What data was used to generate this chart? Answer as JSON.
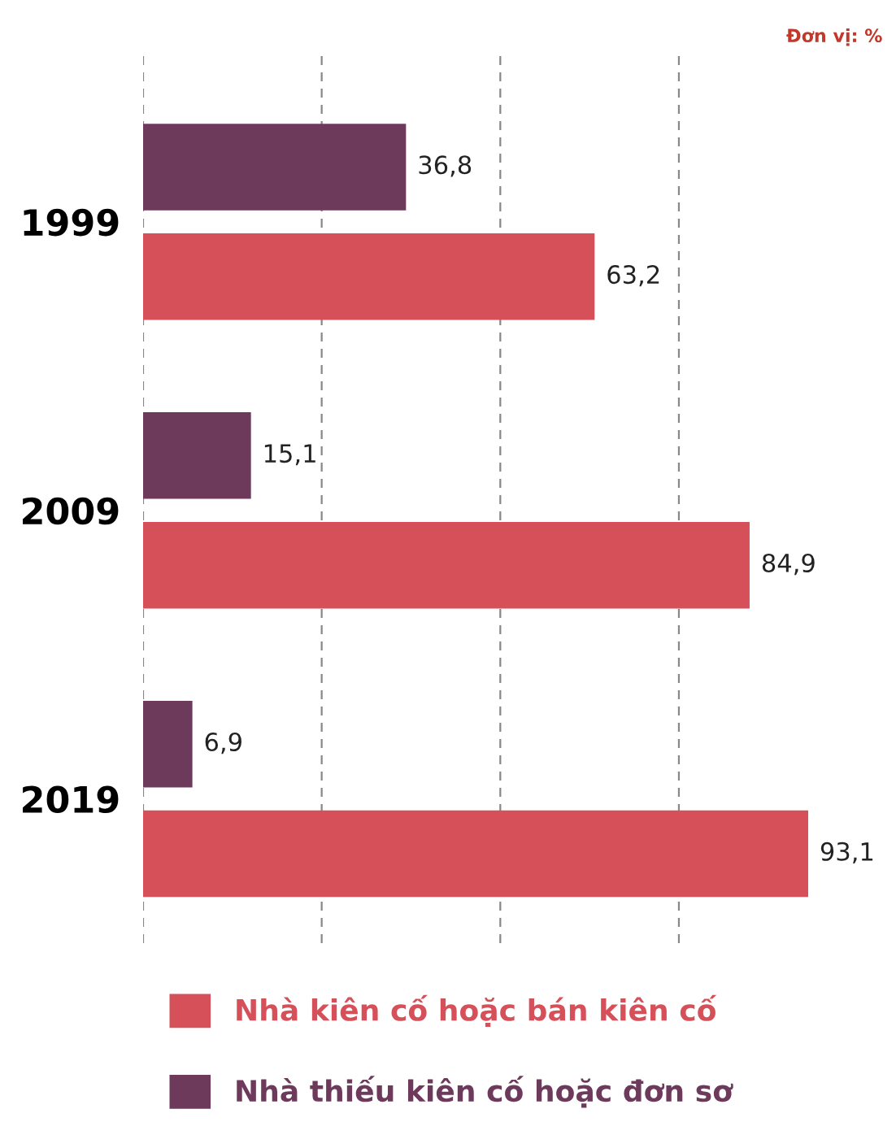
{
  "chart_data": {
    "type": "bar",
    "orientation": "horizontal",
    "annotations": [
      "Đơn vị: %"
    ],
    "categories": [
      "1999",
      "2009",
      "2019"
    ],
    "series": [
      {
        "name": "Nhà kiên cố hoặc bán kiên cố",
        "color": "#d6505a",
        "values": [
          63.2,
          84.9,
          93.1
        ],
        "value_labels": [
          "63,2",
          "84,9",
          "93,1"
        ]
      },
      {
        "name": "Nhà thiếu kiên cố hoặc đơn sơ",
        "color": "#6e3a5c",
        "values": [
          36.8,
          15.1,
          6.9
        ],
        "value_labels": [
          "36,8",
          "15,1",
          "6,9"
        ]
      }
    ],
    "xticks": [
      {
        "value": 0,
        "label": null
      },
      {
        "value": 25,
        "label": null
      },
      {
        "value": 50,
        "label": null
      },
      {
        "value": 75,
        "label": null
      }
    ],
    "grid": "x",
    "legend": "bottom",
    "tick_labels": "y"
  }
}
